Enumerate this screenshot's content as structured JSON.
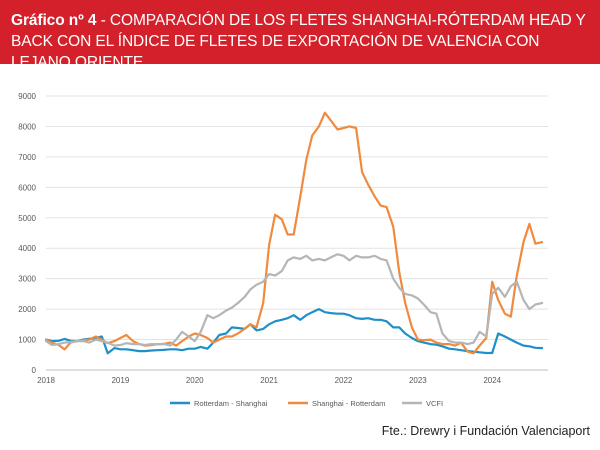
{
  "header": {
    "title_bold": "Gráfico nº 4",
    "title_rest": " - COMPARACIÓN DE LOS FLETES SHANGHAI-RÓTERDAM HEAD Y BACK CON EL ÍNDICE DE FLETES DE EXPORTACIÓN DE VALENCIA CON LEJANO ORIENTE",
    "background_color": "#d3202a"
  },
  "source": "Fte.: Drewry i Fundación Valenciaport",
  "chart_data": {
    "type": "line",
    "xlim": [
      2018,
      2024.75
    ],
    "ylim": [
      0,
      9000
    ],
    "xticks": [
      "2018",
      "2019",
      "2020",
      "2021",
      "2022",
      "2023",
      "2024"
    ],
    "yticks": [
      "0",
      "1000",
      "2000",
      "3000",
      "4000",
      "5000",
      "6000",
      "7000",
      "8000",
      "9000"
    ],
    "grid": true,
    "legend_position": "bottom",
    "series": [
      {
        "name": "Rotterdam - Shanghai",
        "color": "#1f8fc9",
        "x": [
          2018.0,
          2018.08,
          2018.17,
          2018.25,
          2018.33,
          2018.42,
          2018.5,
          2018.58,
          2018.67,
          2018.75,
          2018.83,
          2018.92,
          2019.0,
          2019.08,
          2019.17,
          2019.25,
          2019.33,
          2019.42,
          2019.5,
          2019.58,
          2019.67,
          2019.75,
          2019.83,
          2019.92,
          2020.0,
          2020.08,
          2020.17,
          2020.25,
          2020.33,
          2020.42,
          2020.5,
          2020.58,
          2020.67,
          2020.75,
          2020.83,
          2020.92,
          2021.0,
          2021.08,
          2021.17,
          2021.25,
          2021.33,
          2021.42,
          2021.5,
          2021.58,
          2021.67,
          2021.75,
          2021.83,
          2021.92,
          2022.0,
          2022.08,
          2022.17,
          2022.25,
          2022.33,
          2022.42,
          2022.5,
          2022.58,
          2022.67,
          2022.75,
          2022.83,
          2022.92,
          2023.0,
          2023.08,
          2023.17,
          2023.25,
          2023.33,
          2023.42,
          2023.5,
          2023.58,
          2023.67,
          2023.75,
          2023.83,
          2023.92,
          2024.0,
          2024.08,
          2024.17,
          2024.25,
          2024.33,
          2024.42,
          2024.5,
          2024.58,
          2024.67
        ],
        "values": [
          1000,
          950,
          960,
          1020,
          960,
          950,
          1000,
          1020,
          1050,
          1100,
          550,
          720,
          680,
          680,
          650,
          620,
          620,
          640,
          650,
          660,
          680,
          680,
          650,
          700,
          700,
          760,
          700,
          900,
          1150,
          1200,
          1400,
          1380,
          1350,
          1500,
          1300,
          1350,
          1500,
          1600,
          1650,
          1700,
          1800,
          1650,
          1800,
          1900,
          2000,
          1900,
          1870,
          1850,
          1850,
          1800,
          1700,
          1680,
          1700,
          1650,
          1650,
          1600,
          1400,
          1400,
          1200,
          1050,
          950,
          900,
          850,
          830,
          780,
          700,
          680,
          650,
          620,
          600,
          580,
          560,
          560,
          1200,
          1100,
          1000,
          900,
          800,
          780,
          730,
          720
        ]
      },
      {
        "name": "Shanghai - Rotterdam",
        "color": "#f08a3e",
        "x": [
          2018.0,
          2018.08,
          2018.17,
          2018.25,
          2018.33,
          2018.42,
          2018.5,
          2018.58,
          2018.67,
          2018.75,
          2018.83,
          2018.92,
          2019.0,
          2019.08,
          2019.17,
          2019.25,
          2019.33,
          2019.42,
          2019.5,
          2019.58,
          2019.67,
          2019.75,
          2019.83,
          2019.92,
          2020.0,
          2020.08,
          2020.17,
          2020.25,
          2020.33,
          2020.42,
          2020.5,
          2020.58,
          2020.67,
          2020.75,
          2020.83,
          2020.92,
          2021.0,
          2021.08,
          2021.17,
          2021.25,
          2021.33,
          2021.42,
          2021.5,
          2021.58,
          2021.67,
          2021.75,
          2021.83,
          2021.92,
          2022.0,
          2022.08,
          2022.17,
          2022.25,
          2022.33,
          2022.42,
          2022.5,
          2022.58,
          2022.67,
          2022.75,
          2022.83,
          2022.92,
          2023.0,
          2023.08,
          2023.17,
          2023.25,
          2023.33,
          2023.42,
          2023.5,
          2023.58,
          2023.67,
          2023.75,
          2023.83,
          2023.92,
          2024.0,
          2024.08,
          2024.17,
          2024.25,
          2024.33,
          2024.42,
          2024.5,
          2024.58,
          2024.67
        ],
        "values": [
          1000,
          900,
          820,
          680,
          900,
          950,
          980,
          1000,
          1100,
          1000,
          880,
          950,
          1050,
          1150,
          950,
          850,
          800,
          820,
          850,
          850,
          900,
          800,
          950,
          1100,
          1200,
          1150,
          1050,
          900,
          1000,
          1100,
          1100,
          1200,
          1350,
          1500,
          1400,
          2200,
          4100,
          5100,
          4950,
          4450,
          4450,
          5700,
          6900,
          7700,
          8000,
          8450,
          8200,
          7900,
          7950,
          8000,
          7950,
          6500,
          6100,
          5700,
          5400,
          5350,
          4700,
          3200,
          2200,
          1400,
          1000,
          980,
          1000,
          900,
          850,
          850,
          800,
          900,
          600,
          550,
          800,
          1050,
          2900,
          2300,
          1850,
          1750,
          3100,
          4200,
          4800,
          4150,
          4200
        ]
      },
      {
        "name": "VCFI",
        "color": "#b5b5b5",
        "x": [
          2018.0,
          2018.08,
          2018.17,
          2018.25,
          2018.33,
          2018.42,
          2018.5,
          2018.58,
          2018.67,
          2018.75,
          2018.83,
          2018.92,
          2019.0,
          2019.08,
          2019.17,
          2019.25,
          2019.33,
          2019.42,
          2019.5,
          2019.58,
          2019.67,
          2019.75,
          2019.83,
          2019.92,
          2020.0,
          2020.08,
          2020.17,
          2020.25,
          2020.33,
          2020.42,
          2020.5,
          2020.58,
          2020.67,
          2020.75,
          2020.83,
          2020.92,
          2021.0,
          2021.08,
          2021.17,
          2021.25,
          2021.33,
          2021.42,
          2021.5,
          2021.58,
          2021.67,
          2021.75,
          2021.83,
          2021.92,
          2022.0,
          2022.08,
          2022.17,
          2022.25,
          2022.33,
          2022.42,
          2022.5,
          2022.58,
          2022.67,
          2022.75,
          2022.83,
          2022.92,
          2023.0,
          2023.08,
          2023.17,
          2023.25,
          2023.33,
          2023.42,
          2023.5,
          2023.58,
          2023.67,
          2023.75,
          2023.83,
          2023.92,
          2024.0,
          2024.08,
          2024.17,
          2024.25,
          2024.33,
          2024.42,
          2024.5,
          2024.58,
          2024.67
        ],
        "values": [
          950,
          820,
          850,
          900,
          920,
          950,
          950,
          900,
          1000,
          950,
          900,
          800,
          820,
          880,
          850,
          850,
          820,
          850,
          840,
          860,
          800,
          1000,
          1250,
          1100,
          950,
          1250,
          1800,
          1700,
          1800,
          1950,
          2050,
          2200,
          2400,
          2650,
          2800,
          2900,
          3150,
          3100,
          3250,
          3600,
          3700,
          3650,
          3750,
          3600,
          3650,
          3600,
          3700,
          3800,
          3750,
          3600,
          3750,
          3700,
          3700,
          3750,
          3650,
          3600,
          3000,
          2700,
          2500,
          2450,
          2350,
          2150,
          1900,
          1850,
          1200,
          950,
          900,
          900,
          850,
          900,
          1250,
          1100,
          2500,
          2700,
          2400,
          2750,
          2900,
          2300,
          2000,
          2150,
          2200
        ]
      }
    ]
  }
}
